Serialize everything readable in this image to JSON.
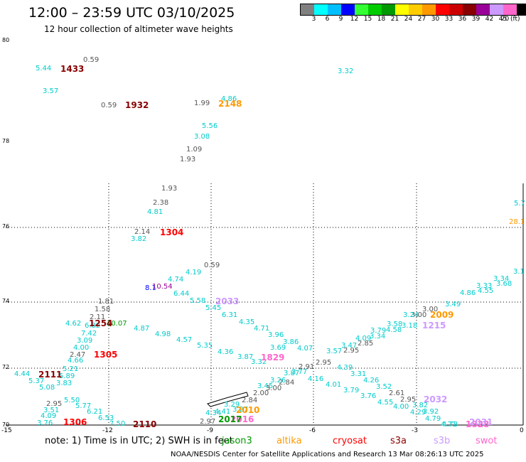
{
  "header": {
    "title": "12:00 – 23:59 UTC 03/10/2025",
    "subtitle": "12 hour collection of altimeter wave heights"
  },
  "colorbar": {
    "colors": [
      "#808080",
      "#00ffff",
      "#00bfff",
      "#0000ff",
      "#33ff33",
      "#00cc00",
      "#009900",
      "#ffff00",
      "#ffcc00",
      "#ff9900",
      "#ff0000",
      "#cc0000",
      "#880000",
      "#990099",
      "#cc99ff",
      "#ff66cc",
      "#000000"
    ],
    "labels": [
      "3",
      "6",
      "9",
      "12",
      "15",
      "18",
      "21",
      "24",
      "27",
      "30",
      "33",
      "36",
      "39",
      "42",
      "45",
      "70"
    ],
    "unit": "(ft)"
  },
  "axes": {
    "lat_labels": [
      "80",
      "78",
      "76",
      "74",
      "72",
      "70"
    ],
    "lon_labels": [
      "-15",
      "-12",
      "-9",
      "-6",
      "-3",
      "0"
    ]
  },
  "wave_heights": [
    {
      "v": "5.44",
      "c": "#00cccc"
    },
    {
      "v": "3.57",
      "c": "#00cccc"
    },
    {
      "v": "0.59",
      "c": "#555555"
    },
    {
      "v": "0.59",
      "c": "#555555"
    },
    {
      "v": "3.32",
      "c": "#00cccc"
    },
    {
      "v": "1.99",
      "c": "#555555"
    },
    {
      "v": "4.86",
      "c": "#00cccc"
    },
    {
      "v": "5.56",
      "c": "#00cccc"
    },
    {
      "v": "3.08",
      "c": "#00cccc"
    },
    {
      "v": "1.09",
      "c": "#555555"
    },
    {
      "v": "1.93",
      "c": "#555555"
    },
    {
      "v": "1.93",
      "c": "#555555"
    },
    {
      "v": "2.38",
      "c": "#555555"
    },
    {
      "v": "4.81",
      "c": "#00cccc"
    },
    {
      "v": "2.14",
      "c": "#555555"
    },
    {
      "v": "3.82",
      "c": "#00cccc"
    },
    {
      "v": "5.7",
      "c": "#00cccc"
    },
    {
      "v": "28.1",
      "c": "#ff9900"
    },
    {
      "v": "0.59",
      "c": "#555555"
    },
    {
      "v": "4.19",
      "c": "#00cccc"
    },
    {
      "v": "4.74",
      "c": "#00cccc"
    },
    {
      "v": "6.44",
      "c": "#00cccc"
    },
    {
      "v": "10.54",
      "c": "#990099"
    },
    {
      "v": "8.1",
      "c": "#0000ff"
    },
    {
      "v": "5.58",
      "c": "#00cccc"
    },
    {
      "v": "5.45",
      "c": "#00cccc"
    },
    {
      "v": "6.31",
      "c": "#00cccc"
    },
    {
      "v": "1.81",
      "c": "#555555"
    },
    {
      "v": "1.58",
      "c": "#555555"
    },
    {
      "v": "2.11",
      "c": "#555555"
    },
    {
      "v": "10.07",
      "c": "#009900"
    },
    {
      "v": "4.62",
      "c": "#00cccc"
    },
    {
      "v": "6.82",
      "c": "#00cccc"
    },
    {
      "v": "7.42",
      "c": "#00cccc"
    },
    {
      "v": "3.09",
      "c": "#00cccc"
    },
    {
      "v": "4.00",
      "c": "#00cccc"
    },
    {
      "v": "2.47",
      "c": "#555555"
    },
    {
      "v": "4.66",
      "c": "#00cccc"
    },
    {
      "v": "5.21",
      "c": "#00cccc"
    },
    {
      "v": "4.87",
      "c": "#00cccc"
    },
    {
      "v": "4.98",
      "c": "#00cccc"
    },
    {
      "v": "4.57",
      "c": "#00cccc"
    },
    {
      "v": "5.35",
      "c": "#00cccc"
    },
    {
      "v": "4.36",
      "c": "#00cccc"
    },
    {
      "v": "4.35",
      "c": "#00cccc"
    },
    {
      "v": "4.71",
      "c": "#00cccc"
    },
    {
      "v": "3.96",
      "c": "#00cccc"
    },
    {
      "v": "3.86",
      "c": "#00cccc"
    },
    {
      "v": "4.07",
      "c": "#00cccc"
    },
    {
      "v": "3.87",
      "c": "#00cccc"
    },
    {
      "v": "3.32",
      "c": "#00cccc"
    },
    {
      "v": "3.69",
      "c": "#00cccc"
    },
    {
      "v": "3.57",
      "c": "#00cccc"
    },
    {
      "v": "3.47",
      "c": "#00cccc"
    },
    {
      "v": "2.85",
      "c": "#555555"
    },
    {
      "v": "2.95",
      "c": "#555555"
    },
    {
      "v": "4.09",
      "c": "#00cccc"
    },
    {
      "v": "3.34",
      "c": "#00cccc"
    },
    {
      "v": "3.79",
      "c": "#00cccc"
    },
    {
      "v": "4.58",
      "c": "#00cccc"
    },
    {
      "v": "3.58",
      "c": "#00cccc"
    },
    {
      "v": "3.18",
      "c": "#00cccc"
    },
    {
      "v": "3.00",
      "c": "#555555"
    },
    {
      "v": "3.00",
      "c": "#555555"
    },
    {
      "v": "3.24",
      "c": "#00cccc"
    },
    {
      "v": "4.86",
      "c": "#00cccc"
    },
    {
      "v": "3.33",
      "c": "#00cccc"
    },
    {
      "v": "4.55",
      "c": "#00cccc"
    },
    {
      "v": "3.34",
      "c": "#00cccc"
    },
    {
      "v": "3.68",
      "c": "#00cccc"
    },
    {
      "v": "3.1",
      "c": "#00cccc"
    },
    {
      "v": "3.49",
      "c": "#00cccc"
    },
    {
      "v": "4.44",
      "c": "#00cccc"
    },
    {
      "v": "5.37",
      "c": "#00cccc"
    },
    {
      "v": "5.08",
      "c": "#00cccc"
    },
    {
      "v": "3.83",
      "c": "#00cccc"
    },
    {
      "v": "5.89",
      "c": "#00cccc"
    },
    {
      "v": "2.95",
      "c": "#555555"
    },
    {
      "v": "5.50",
      "c": "#00cccc"
    },
    {
      "v": "5.77",
      "c": "#00cccc"
    },
    {
      "v": "3.51",
      "c": "#00cccc"
    },
    {
      "v": "4.09",
      "c": "#00cccc"
    },
    {
      "v": "3.76",
      "c": "#00cccc"
    },
    {
      "v": "6.21",
      "c": "#00cccc"
    },
    {
      "v": "6.53",
      "c": "#00cccc"
    },
    {
      "v": "7.50",
      "c": "#00cccc"
    },
    {
      "v": "3.45",
      "c": "#00cccc"
    },
    {
      "v": "3.26",
      "c": "#00cccc"
    },
    {
      "v": "2.84",
      "c": "#555555"
    },
    {
      "v": "3.00",
      "c": "#555555"
    },
    {
      "v": "3.87",
      "c": "#00cccc"
    },
    {
      "v": "3.77",
      "c": "#00cccc"
    },
    {
      "v": "2.91",
      "c": "#555555"
    },
    {
      "v": "2.95",
      "c": "#555555"
    },
    {
      "v": "4.16",
      "c": "#00cccc"
    },
    {
      "v": "4.01",
      "c": "#00cccc"
    },
    {
      "v": "3.79",
      "c": "#00cccc"
    },
    {
      "v": "3.76",
      "c": "#00cccc"
    },
    {
      "v": "4.55",
      "c": "#00cccc"
    },
    {
      "v": "4.39",
      "c": "#00cccc"
    },
    {
      "v": "3.31",
      "c": "#00cccc"
    },
    {
      "v": "4.26",
      "c": "#00cccc"
    },
    {
      "v": "3.52",
      "c": "#00cccc"
    },
    {
      "v": "4.00",
      "c": "#00cccc"
    },
    {
      "v": "2.61",
      "c": "#555555"
    },
    {
      "v": "2.95",
      "c": "#555555"
    },
    {
      "v": "3.82",
      "c": "#00cccc"
    },
    {
      "v": "4.29",
      "c": "#00cccc"
    },
    {
      "v": "3.92",
      "c": "#00cccc"
    },
    {
      "v": "4.79",
      "c": "#00cccc"
    },
    {
      "v": "4.73",
      "c": "#00cccc"
    },
    {
      "v": "4.71",
      "c": "#00cccc"
    },
    {
      "v": "2.00",
      "c": "#555555"
    },
    {
      "v": "2.84",
      "c": "#555555"
    },
    {
      "v": "3.29",
      "c": "#00cccc"
    },
    {
      "v": "3.27",
      "c": "#00cccc"
    },
    {
      "v": "4.34",
      "c": "#00cccc"
    },
    {
      "v": "4.41",
      "c": "#00cccc"
    },
    {
      "v": "2.97",
      "c": "#555555"
    }
  ],
  "times": [
    {
      "t": "1433",
      "c": "#880000"
    },
    {
      "t": "1932",
      "c": "#880000"
    },
    {
      "t": "2148",
      "c": "#ff9900"
    },
    {
      "t": "1304",
      "c": "#ff0000"
    },
    {
      "t": "2033",
      "c": "#cc99ff"
    },
    {
      "t": "1254",
      "c": "#880000"
    },
    {
      "t": "1305",
      "c": "#ff0000"
    },
    {
      "t": "1829",
      "c": "#ff66cc"
    },
    {
      "t": "2009",
      "c": "#ff9900"
    },
    {
      "t": "1215",
      "c": "#cc99ff"
    },
    {
      "t": "2111",
      "c": "#880000"
    },
    {
      "t": "1306",
      "c": "#ff0000"
    },
    {
      "t": "2110",
      "c": "#880000"
    },
    {
      "t": "2010",
      "c": "#ff9900"
    },
    {
      "t": "2016",
      "c": "#ff66cc"
    },
    {
      "t": "2032",
      "c": "#cc99ff"
    },
    {
      "t": "1828",
      "c": "#ff66cc"
    },
    {
      "t": "2031",
      "c": "#cc99ff"
    },
    {
      "t": "2017",
      "c": "#009900"
    }
  ],
  "footer": {
    "note": "note:  1) Time is in UTC; 2) SWH is in feet",
    "legend": [
      {
        "name": "jason3",
        "color": "#009900"
      },
      {
        "name": "altika",
        "color": "#ff9900"
      },
      {
        "name": "cryosat",
        "color": "#ff0000"
      },
      {
        "name": "s3a",
        "color": "#880000"
      },
      {
        "name": "s3b",
        "color": "#cc99ff"
      },
      {
        "name": "swot",
        "color": "#ff66cc"
      }
    ],
    "credit": "NOAA/NESDIS Center for Satellite Applications and Research    13 Mar 08:26:13 UTC 2025"
  }
}
